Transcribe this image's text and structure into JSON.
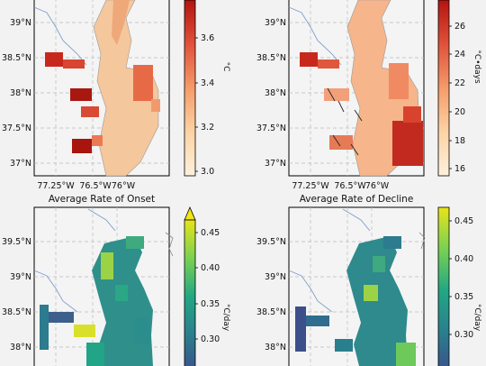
{
  "panels": [
    {
      "id": "tl",
      "title": "",
      "lat_ticks": [
        "39°N",
        "38.5°N",
        "38°N",
        "37.5°N",
        "37°N"
      ],
      "lon_ticks": [
        "77.25°W",
        "76.5°W",
        "76°W"
      ],
      "colorbar": {
        "unit": "°C",
        "ticks": [
          "3.6",
          "3.4",
          "3.2",
          "3.0"
        ],
        "colormap": "OrRd",
        "extend_top": false
      }
    },
    {
      "id": "tr",
      "title": "",
      "lat_ticks": [
        "39°N",
        "38.5°N",
        "38°N",
        "37.5°N",
        "37°N"
      ],
      "lon_ticks": [
        "77.25°W",
        "76.5°W",
        "76°W"
      ],
      "colorbar": {
        "unit": "°C•days",
        "ticks": [
          "26",
          "24",
          "22",
          "20",
          "18",
          "16"
        ],
        "colormap": "OrRd",
        "extend_top": false
      }
    },
    {
      "id": "bl",
      "title": "Average Rate of Onset",
      "lat_ticks": [
        "39.5°N",
        "39°N",
        "38.5°N",
        "38°N"
      ],
      "lon_ticks": [],
      "colorbar": {
        "unit": "°C/day",
        "ticks": [
          "0.45",
          "0.40",
          "0.35",
          "0.30"
        ],
        "colormap": "viridis",
        "extend_top": true
      }
    },
    {
      "id": "br",
      "title": "Average Rate of Decline",
      "lat_ticks": [
        "39.5°N",
        "39°N",
        "38.5°N",
        "38°N"
      ],
      "lon_ticks": [],
      "colorbar": {
        "unit": "°C/day",
        "ticks": [
          "0.45",
          "0.40",
          "0.35",
          "0.30"
        ],
        "colormap": "viridis",
        "extend_top": false
      }
    }
  ],
  "colors": {
    "background": "#f2f2f2",
    "map_bg": "#f4f4f4",
    "river": "#7f9fcf",
    "coast": "#888888",
    "grid": "#bbbbbb"
  }
}
